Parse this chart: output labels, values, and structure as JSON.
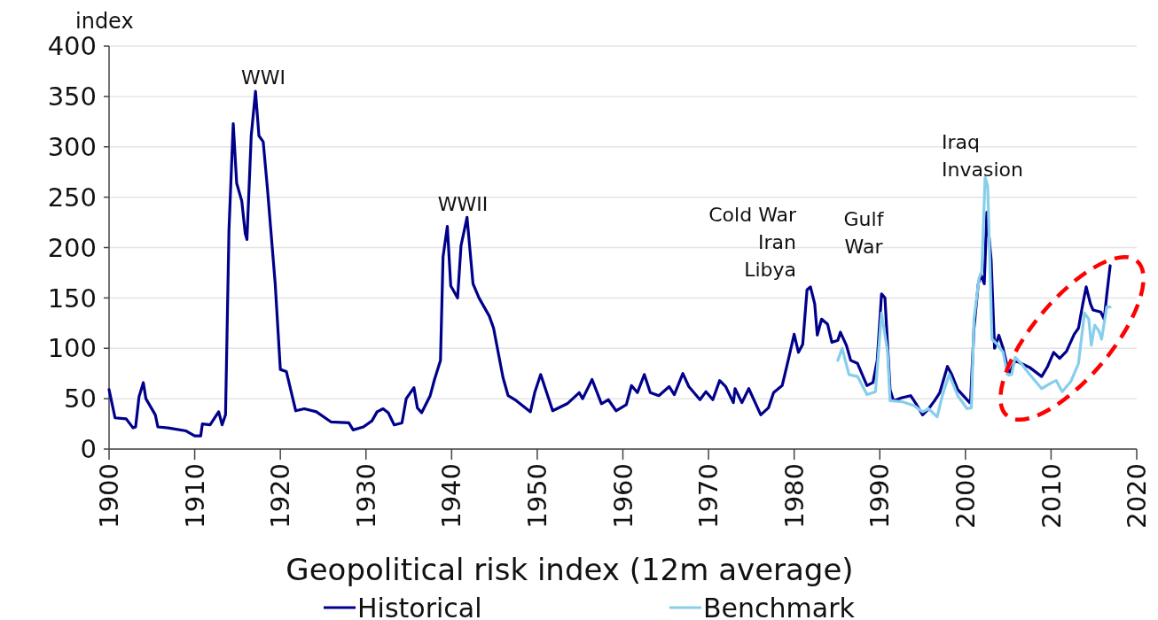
{
  "chart_data": {
    "type": "line",
    "xlabel": "Geopolitical risk index (12m average)",
    "ylabel": "index",
    "xlim": [
      1900,
      2020
    ],
    "xticks": [
      1900,
      1910,
      1920,
      1930,
      1940,
      1950,
      1960,
      1970,
      1980,
      1990,
      2000,
      2010,
      2020
    ],
    "ylim": [
      0,
      400
    ],
    "yticks": [
      0,
      50,
      100,
      150,
      200,
      250,
      300,
      350,
      400
    ],
    "grid": "y",
    "legend": "bottom",
    "marker": "none",
    "line_style": "solid",
    "annotations": [
      "WWI",
      "WWII",
      "Cold War\nIran\nLibya",
      "Gulf\nWar",
      "Iraq\nInvasion"
    ],
    "series": [
      {
        "name": "Historical",
        "color": "#00008b",
        "x": [
          1900,
          1900.7,
          1902,
          1902.8,
          1903.1,
          1903.5,
          1904,
          1904.3,
          1905.4,
          1905.7,
          1906.9,
          1909,
          1910,
          1910.7,
          1910.9,
          1911.8,
          1912.8,
          1913.2,
          1913.6,
          1914,
          1914.5,
          1914.9,
          1915.5,
          1915.9,
          1916.1,
          1916.6,
          1917.1,
          1917.5,
          1918,
          1918.5,
          1919.4,
          1920,
          1920.7,
          1921.8,
          1922.8,
          1924.2,
          1925.9,
          1928,
          1928.5,
          1929.7,
          1930.7,
          1931.3,
          1932,
          1932.6,
          1933.3,
          1934.2,
          1934.7,
          1935.6,
          1936,
          1936.5,
          1937.5,
          1938,
          1938.7,
          1939,
          1939.5,
          1939.9,
          1940.7,
          1941.1,
          1941.8,
          1942.5,
          1943.2,
          1944.4,
          1944.9,
          1946,
          1946.6,
          1947.4,
          1949.2,
          1949.7,
          1950.4,
          1951.8,
          1953.5,
          1954.9,
          1955.3,
          1956.4,
          1957.5,
          1958.3,
          1959.2,
          1960.4,
          1961,
          1961.7,
          1962.5,
          1963.2,
          1964.2,
          1965.4,
          1966,
          1967,
          1967.7,
          1969,
          1969.7,
          1970.5,
          1971.3,
          1972,
          1972.9,
          1973.1,
          1973.9,
          1974.7,
          1976.1,
          1977,
          1977.6,
          1978.6,
          1979.3,
          1980,
          1980.5,
          1981,
          1981.5,
          1981.9,
          1982.4,
          1982.7,
          1983.2,
          1983.9,
          1984.4,
          1985.1,
          1985.4,
          1986.1,
          1986.6,
          1987.4,
          1988.5,
          1989.2,
          1989.7,
          1990.2,
          1990.6,
          1991.2,
          1991.6,
          1992.6,
          1993.6,
          1994.3,
          1995,
          1995.7,
          1996.4,
          1997,
          1997.9,
          1998.4,
          1999.1,
          2000.5,
          2000.6,
          2001,
          2001.5,
          2001.8,
          2002.2,
          2002.5,
          2003,
          2003.4,
          2003.9,
          2004.4,
          2005.1,
          2005.8,
          2006.5,
          2007.5,
          2008.9,
          2009.6,
          2010.3,
          2011,
          2011.8,
          2012.7,
          2013.2,
          2013.7,
          2014.1,
          2014.6,
          2014.9,
          2015.8,
          2016.2,
          2016.5,
          2016.9
        ],
        "values": [
          59,
          31,
          30,
          21,
          22,
          52,
          66,
          50,
          34,
          22,
          21,
          18,
          13,
          13,
          25,
          24,
          37,
          24,
          34,
          217,
          323,
          264,
          246,
          214,
          208,
          311,
          355,
          311,
          305,
          258,
          164,
          79,
          77,
          38,
          40,
          37,
          27,
          26,
          19,
          22,
          28,
          37,
          40,
          36,
          24,
          26,
          50,
          61,
          41,
          36,
          53,
          69,
          88,
          191,
          221,
          162,
          150,
          202,
          230,
          164,
          150,
          132,
          120,
          71,
          53,
          49,
          37,
          56,
          74,
          38,
          45,
          56,
          50,
          69,
          45,
          49,
          38,
          44,
          63,
          56,
          74,
          56,
          53,
          62,
          54,
          75,
          62,
          49,
          57,
          49,
          68,
          62,
          46,
          60,
          46,
          60,
          34,
          41,
          56,
          63,
          88,
          114,
          96,
          104,
          158,
          161,
          144,
          113,
          129,
          124,
          106,
          108,
          116,
          103,
          88,
          85,
          63,
          66,
          88,
          154,
          150,
          59,
          48,
          51,
          53,
          44,
          34,
          40,
          48,
          56,
          82,
          74,
          59,
          46,
          48,
          120,
          164,
          173,
          164,
          235,
          188,
          100,
          113,
          100,
          74,
          88,
          85,
          81,
          72,
          82,
          96,
          90,
          97,
          114,
          120,
          144,
          161,
          144,
          138,
          136,
          129,
          153,
          182
        ]
      },
      {
        "name": "Benchmark",
        "color": "#87ceeb",
        "x": [
          1985.1,
          1985.6,
          1986.4,
          1987.4,
          1988.5,
          1989.5,
          1990.2,
          1990.9,
          1991.2,
          1992.6,
          1994,
          1995,
          1995.7,
          1996.7,
          1997.3,
          1998.1,
          1999.1,
          2000.2,
          2000.7,
          2001,
          2001.6,
          2001.9,
          2002.3,
          2002.6,
          2003.1,
          2003.6,
          2004.4,
          2004.9,
          2005.4,
          2005.8,
          2006.5,
          2007.5,
          2008.9,
          2010.1,
          2010.6,
          2011.3,
          2012.3,
          2013.2,
          2013.9,
          2014.4,
          2014.7,
          2015.1,
          2015.6,
          2015.9,
          2016.5,
          2016.9
        ],
        "values": [
          88,
          100,
          74,
          72,
          54,
          57,
          135,
          97,
          48,
          47,
          43,
          37,
          40,
          32,
          53,
          74,
          53,
          40,
          41,
          129,
          170,
          176,
          270,
          261,
          109,
          105,
          96,
          74,
          74,
          91,
          85,
          74,
          60,
          66,
          68,
          57,
          67,
          85,
          135,
          129,
          103,
          123,
          117,
          109,
          141,
          141
        ]
      }
    ]
  }
}
